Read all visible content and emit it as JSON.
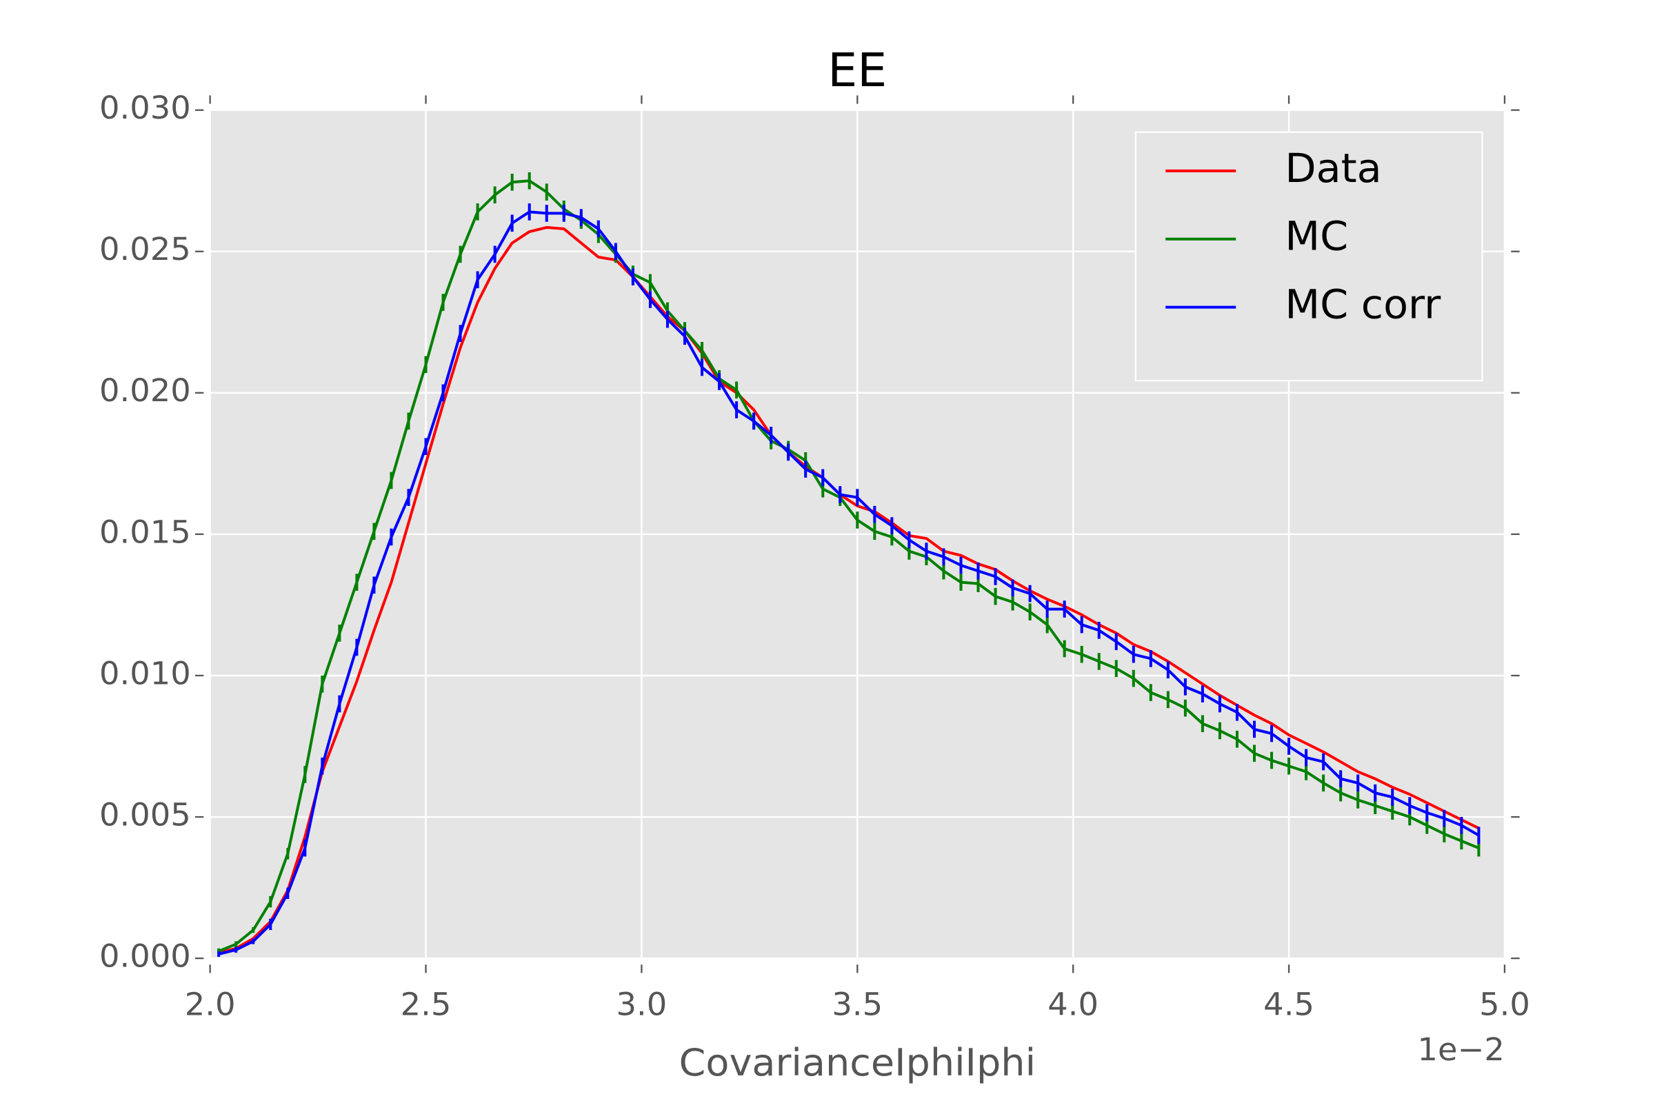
{
  "chart_data": {
    "type": "line",
    "title": "EE",
    "x_label": "CovarianceIphiIphi",
    "x_offset_label": "1e−2",
    "x": [
      0.0202,
      0.0206,
      0.021,
      0.0214,
      0.0218,
      0.0222,
      0.0226,
      0.023,
      0.0234,
      0.0238,
      0.0242,
      0.0246,
      0.025,
      0.0254,
      0.0258,
      0.0262,
      0.0266,
      0.027,
      0.0274,
      0.0278,
      0.0282,
      0.0286,
      0.029,
      0.0294,
      0.0298,
      0.0302,
      0.0306,
      0.031,
      0.0314,
      0.0318,
      0.0322,
      0.0326,
      0.033,
      0.0334,
      0.0338,
      0.0342,
      0.0346,
      0.035,
      0.0354,
      0.0358,
      0.0362,
      0.0366,
      0.037,
      0.0374,
      0.0378,
      0.0382,
      0.0386,
      0.039,
      0.0394,
      0.0398,
      0.0402,
      0.0406,
      0.041,
      0.0414,
      0.0418,
      0.0422,
      0.0426,
      0.043,
      0.0434,
      0.0438,
      0.0442,
      0.0446,
      0.045,
      0.0454,
      0.0458,
      0.0462,
      0.0466,
      0.047,
      0.0474,
      0.0478,
      0.0482,
      0.0486,
      0.049,
      0.0494
    ],
    "series": [
      {
        "name": "Data",
        "color": "#ff0000",
        "values": [
          0.0002,
          0.00035,
          0.0007,
          0.0013,
          0.0024,
          0.0043,
          0.0066,
          0.0082,
          0.0098,
          0.0116,
          0.0133,
          0.0154,
          0.0175,
          0.0196,
          0.0216,
          0.0232,
          0.0244,
          0.0253,
          0.0257,
          0.02585,
          0.0258,
          0.0253,
          0.0248,
          0.0247,
          0.0241,
          0.0234,
          0.0227,
          0.0222,
          0.0214,
          0.0204,
          0.02,
          0.0194,
          0.0185,
          0.0179,
          0.0174,
          0.017,
          0.0164,
          0.016,
          0.0158,
          0.0154,
          0.01495,
          0.01485,
          0.0144,
          0.01425,
          0.01395,
          0.01375,
          0.01335,
          0.013,
          0.0127,
          0.01245,
          0.01215,
          0.0118,
          0.0115,
          0.0111,
          0.01085,
          0.0105,
          0.0101,
          0.0097,
          0.0093,
          0.00895,
          0.0086,
          0.0083,
          0.0079,
          0.0076,
          0.0073,
          0.00695,
          0.0066,
          0.00635,
          0.00605,
          0.0058,
          0.0055,
          0.0052,
          0.0049,
          0.0046
        ]
      },
      {
        "name": "MC",
        "color": "#008000",
        "values": [
          0.00025,
          0.0005,
          0.001,
          0.002,
          0.0037,
          0.0065,
          0.0097,
          0.0115,
          0.0133,
          0.0151,
          0.0169,
          0.019,
          0.021,
          0.0232,
          0.0249,
          0.0264,
          0.027,
          0.02745,
          0.0275,
          0.0271,
          0.0265,
          0.0261,
          0.0256,
          0.0249,
          0.0242,
          0.0239,
          0.0229,
          0.0222,
          0.0215,
          0.0205,
          0.0201,
          0.019,
          0.0183,
          0.018,
          0.0176,
          0.0166,
          0.0163,
          0.0155,
          0.0151,
          0.0149,
          0.0144,
          0.0142,
          0.0137,
          0.0133,
          0.01325,
          0.0128,
          0.0126,
          0.01225,
          0.0118,
          0.01095,
          0.01075,
          0.0105,
          0.01025,
          0.0099,
          0.0094,
          0.00915,
          0.00885,
          0.0083,
          0.00805,
          0.00775,
          0.00725,
          0.007,
          0.0068,
          0.0066,
          0.0062,
          0.00585,
          0.0056,
          0.0054,
          0.0052,
          0.005,
          0.0047,
          0.0044,
          0.00415,
          0.0039
        ],
        "errors": [
          0.0001,
          0.0001,
          0.0001,
          0.0002,
          0.0002,
          0.0003,
          0.0003,
          0.0003,
          0.0003,
          0.0003,
          0.0003,
          0.0003,
          0.0003,
          0.0003,
          0.0003,
          0.0003,
          0.0003,
          0.0003,
          0.0003,
          0.0003,
          0.0003,
          0.0003,
          0.0003,
          0.0003,
          0.0003,
          0.0003,
          0.0003,
          0.0003,
          0.0003,
          0.0003,
          0.0003,
          0.0003,
          0.0003,
          0.0003,
          0.0003,
          0.0003,
          0.0003,
          0.0003,
          0.0003,
          0.0003,
          0.0003,
          0.0003,
          0.0003,
          0.0003,
          0.0003,
          0.0003,
          0.0003,
          0.0003,
          0.0003,
          0.0003,
          0.0003,
          0.0003,
          0.0003,
          0.0003,
          0.0003,
          0.0003,
          0.0003,
          0.0003,
          0.0003,
          0.0003,
          0.0003,
          0.0003,
          0.0003,
          0.0003,
          0.0003,
          0.0003,
          0.0003,
          0.0003,
          0.0003,
          0.0003,
          0.0003,
          0.0003,
          0.0003,
          0.0003
        ]
      },
      {
        "name": "MC corr",
        "color": "#0000ff",
        "values": [
          0.00015,
          0.0003,
          0.0006,
          0.0012,
          0.0023,
          0.0039,
          0.0068,
          0.009,
          0.011,
          0.0132,
          0.0149,
          0.0163,
          0.0181,
          0.02,
          0.0221,
          0.024,
          0.0249,
          0.026,
          0.0264,
          0.02635,
          0.02635,
          0.0262,
          0.0258,
          0.025,
          0.0241,
          0.0233,
          0.0226,
          0.022,
          0.0209,
          0.0204,
          0.0194,
          0.019,
          0.0185,
          0.0179,
          0.0173,
          0.017,
          0.0164,
          0.0163,
          0.0157,
          0.0153,
          0.0148,
          0.0144,
          0.0142,
          0.0139,
          0.0137,
          0.0135,
          0.0131,
          0.0129,
          0.01235,
          0.01235,
          0.0118,
          0.0116,
          0.0112,
          0.01075,
          0.0106,
          0.0102,
          0.0096,
          0.00935,
          0.009,
          0.0087,
          0.0081,
          0.00795,
          0.0075,
          0.0071,
          0.00695,
          0.00635,
          0.0062,
          0.00585,
          0.0057,
          0.0054,
          0.00515,
          0.00495,
          0.0047,
          0.00435
        ],
        "errors": [
          0.0001,
          0.0001,
          0.0001,
          0.0002,
          0.0002,
          0.0003,
          0.0003,
          0.0003,
          0.0003,
          0.0003,
          0.0003,
          0.0003,
          0.0003,
          0.0003,
          0.0003,
          0.0003,
          0.0003,
          0.0003,
          0.0003,
          0.0003,
          0.0003,
          0.0003,
          0.0003,
          0.0003,
          0.0003,
          0.0003,
          0.0003,
          0.0003,
          0.0003,
          0.0003,
          0.0003,
          0.0003,
          0.0003,
          0.0003,
          0.0003,
          0.0003,
          0.0003,
          0.0003,
          0.0003,
          0.0003,
          0.0003,
          0.0003,
          0.0003,
          0.0003,
          0.0003,
          0.0003,
          0.0003,
          0.0003,
          0.0003,
          0.0003,
          0.0003,
          0.0003,
          0.0003,
          0.0003,
          0.0003,
          0.0003,
          0.0003,
          0.0003,
          0.0003,
          0.0003,
          0.0003,
          0.0003,
          0.0003,
          0.0003,
          0.0003,
          0.0003,
          0.0003,
          0.0003,
          0.0003,
          0.0003,
          0.0003,
          0.0003,
          0.0003,
          0.0003
        ]
      }
    ],
    "xlim": [
      0.02,
      0.05
    ],
    "xticks": [
      {
        "value": 0.02,
        "label": "2.0"
      },
      {
        "value": 0.025,
        "label": "2.5"
      },
      {
        "value": 0.03,
        "label": "3.0"
      },
      {
        "value": 0.035,
        "label": "3.5"
      },
      {
        "value": 0.04,
        "label": "4.0"
      },
      {
        "value": 0.045,
        "label": "4.5"
      },
      {
        "value": 0.05,
        "label": "5.0"
      }
    ],
    "ylim": [
      0,
      0.03
    ],
    "yticks": [
      {
        "value": 0,
        "label": "0.000"
      },
      {
        "value": 0.005,
        "label": "0.005"
      },
      {
        "value": 0.01,
        "label": "0.010"
      },
      {
        "value": 0.015,
        "label": "0.015"
      },
      {
        "value": 0.02,
        "label": "0.020"
      },
      {
        "value": 0.025,
        "label": "0.025"
      },
      {
        "value": 0.03,
        "label": "0.030"
      }
    ],
    "grid": true,
    "legend": "upper right"
  }
}
